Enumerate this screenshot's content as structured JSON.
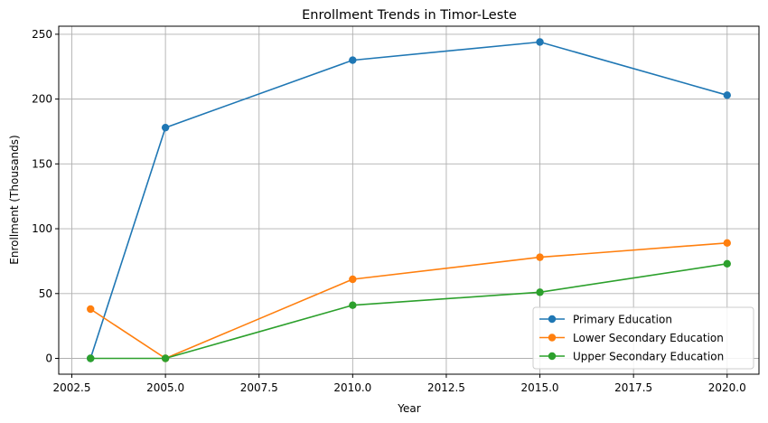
{
  "chart_data": {
    "type": "line",
    "title": "Enrollment Trends in Timor-Leste",
    "xlabel": "Year",
    "ylabel": "Enrollment (Thousands)",
    "xlim": [
      2002.15,
      2020.85
    ],
    "ylim": [
      -12.2,
      256.2
    ],
    "xticks": [
      2002.5,
      2005.0,
      2007.5,
      2010.0,
      2012.5,
      2015.0,
      2017.5,
      2020.0
    ],
    "xtick_labels": [
      "2002.5",
      "2005.0",
      "2007.5",
      "2010.0",
      "2012.5",
      "2015.0",
      "2017.5",
      "2020.0"
    ],
    "yticks": [
      0,
      50,
      100,
      150,
      200,
      250
    ],
    "ytick_labels": [
      "0",
      "50",
      "100",
      "150",
      "200",
      "250"
    ],
    "grid": true,
    "legend_position": "lower-right",
    "series": [
      {
        "name": "Primary Education",
        "color": "#1f77b4",
        "x": [
          2003,
          2005,
          2010,
          2015,
          2020
        ],
        "y": [
          0,
          178,
          230,
          244,
          203
        ]
      },
      {
        "name": "Lower Secondary Education",
        "color": "#ff7f0e",
        "x": [
          2003,
          2005,
          2010,
          2015,
          2020
        ],
        "y": [
          38,
          0,
          61,
          78,
          89
        ]
      },
      {
        "name": "Upper Secondary Education",
        "color": "#2ca02c",
        "x": [
          2003,
          2005,
          2010,
          2015,
          2020
        ],
        "y": [
          0,
          0,
          41,
          51,
          73
        ]
      }
    ]
  }
}
